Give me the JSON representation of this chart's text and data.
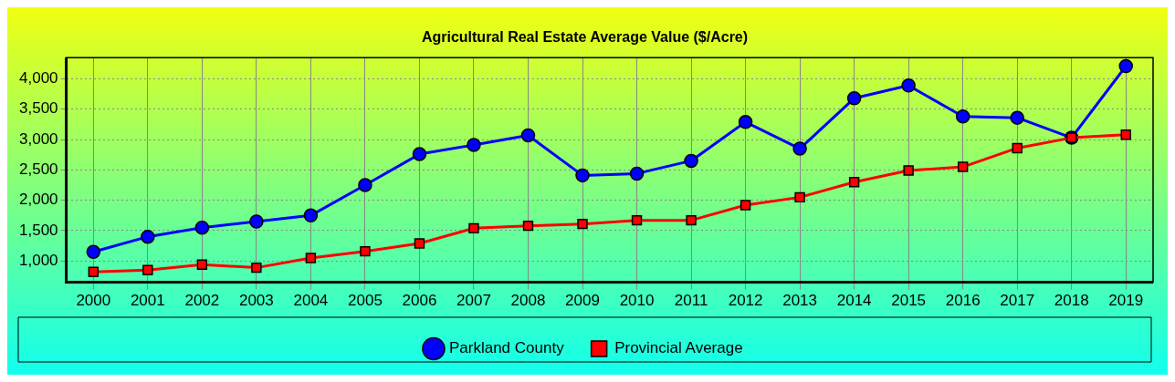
{
  "chart_data": {
    "type": "line",
    "title": "Agricultural Real Estate Average Value ($/Acre)",
    "categories": [
      "2000",
      "2001",
      "2002",
      "2003",
      "2004",
      "2005",
      "2006",
      "2007",
      "2008",
      "2009",
      "2010",
      "2011",
      "2012",
      "2013",
      "2014",
      "2015",
      "2016",
      "2017",
      "2018",
      "2019"
    ],
    "series": [
      {
        "name": "Parkland County",
        "color": "#0000ff",
        "marker": "circle",
        "values": [
          1150,
          1400,
          1550,
          1650,
          1750,
          2250,
          2760,
          2910,
          3070,
          2410,
          2440,
          2650,
          3290,
          2850,
          3680,
          3890,
          3380,
          3360,
          3030,
          4210
        ]
      },
      {
        "name": "Provincial Average",
        "color": "#ff0000",
        "marker": "square",
        "values": [
          820,
          850,
          940,
          890,
          1050,
          1160,
          1290,
          1540,
          1580,
          1610,
          1670,
          1670,
          1920,
          2050,
          2300,
          2490,
          2550,
          2860,
          3030,
          3080
        ]
      }
    ],
    "ylim": [
      650,
      4350
    ],
    "yticks": [
      {
        "value": 1000,
        "label": "1,000"
      },
      {
        "value": 1500,
        "label": "1,500"
      },
      {
        "value": 2000,
        "label": "2,000"
      },
      {
        "value": 2500,
        "label": "2,500"
      },
      {
        "value": 3000,
        "label": "3,000"
      },
      {
        "value": 3500,
        "label": "3,500"
      },
      {
        "value": 4000,
        "label": "4,000"
      }
    ],
    "grid": true,
    "legend": "bottom",
    "line_style": "solid"
  }
}
